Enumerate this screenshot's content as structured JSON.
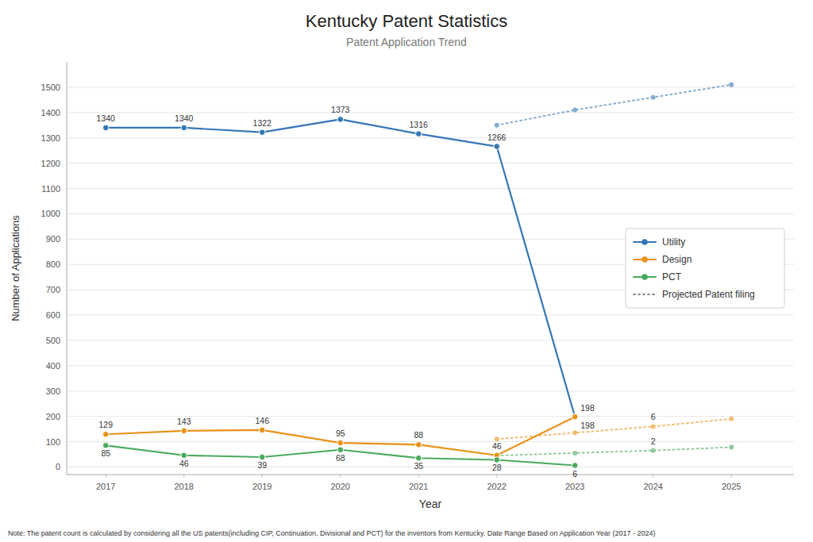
{
  "chart_data": {
    "type": "line",
    "title": "Kentucky Patent Statistics",
    "subtitle": "Patent Application Trend",
    "xlabel": "Year",
    "ylabel": "Number of Applications",
    "footnote": "Note: The patent count is calculated by considering all the US patents(including CIP, Continuation, Divisional and PCT) for the inventors from Kentucky. Date Range Based on Application Year (2017 - 2024)",
    "xlim": [
      2016.5,
      2025.8
    ],
    "ylim": [
      -30,
      1600
    ],
    "xticks": [
      2017,
      2018,
      2019,
      2020,
      2021,
      2022,
      2023,
      2024,
      2025
    ],
    "yticks": [
      0,
      100,
      200,
      300,
      400,
      500,
      600,
      700,
      800,
      900,
      1000,
      1100,
      1200,
      1300,
      1400,
      1500
    ],
    "grid": true,
    "legend": "right",
    "series": [
      {
        "name": "Utility",
        "color": "#3578b5",
        "x": [
          2017,
          2018,
          2019,
          2020,
          2021,
          2022,
          2023
        ],
        "values": [
          1340,
          1340,
          1322,
          1373,
          1316,
          1266,
          198
        ],
        "marker": "circle",
        "line_style": "solid",
        "data_labels": true
      },
      {
        "name": "Design",
        "color": "#e8921a",
        "x": [
          2017,
          2018,
          2019,
          2020,
          2021,
          2022,
          2023
        ],
        "values": [
          129,
          143,
          146,
          95,
          88,
          46,
          198
        ],
        "marker": "circle",
        "line_style": "solid",
        "data_labels": true
      },
      {
        "name": "PCT",
        "color": "#4aaa5c",
        "x": [
          2017,
          2018,
          2019,
          2020,
          2021,
          2022,
          2023
        ],
        "values": [
          85,
          46,
          39,
          68,
          35,
          28,
          6
        ],
        "marker": "circle",
        "line_style": "solid",
        "data_labels": true
      },
      {
        "name": "Projected Patent filing",
        "color": "#3578b5",
        "x": [
          2022,
          2023,
          2024,
          2025
        ],
        "values": [
          1350,
          1410,
          1460,
          1510
        ],
        "marker": "circle",
        "line_style": "dotted",
        "data_labels": false
      },
      {
        "name": "Projected Patent filing",
        "color": "#e8921a",
        "x": [
          2022,
          2023,
          2024,
          2025
        ],
        "values": [
          110,
          135,
          160,
          190
        ],
        "marker": "circle",
        "line_style": "dotted",
        "data_labels": false
      },
      {
        "name": "Projected Patent filing",
        "color": "#4aaa5c",
        "x": [
          2022,
          2023,
          2024,
          2025
        ],
        "values": [
          45,
          55,
          65,
          78
        ],
        "marker": "circle",
        "line_style": "dotted",
        "data_labels": false
      }
    ],
    "annotations": [
      {
        "text": "6",
        "x": 2024,
        "y": 160
      },
      {
        "text": "2",
        "x": 2024,
        "y": 65
      }
    ]
  }
}
